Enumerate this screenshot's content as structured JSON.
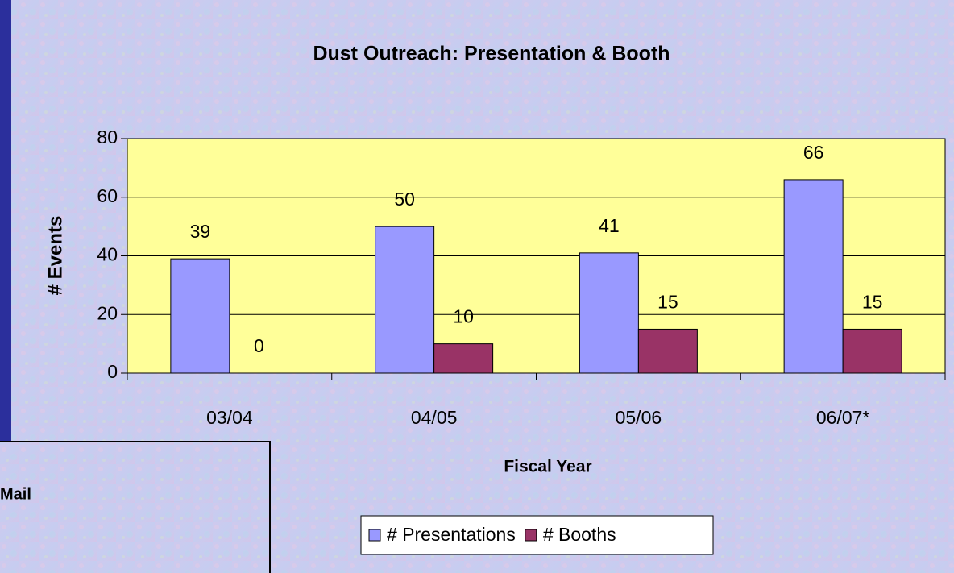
{
  "chart_data": {
    "type": "bar",
    "title": "Dust Outreach: Presentation & Booth",
    "x_label": "Fiscal Year",
    "y_label": "# Events",
    "categories": [
      "03/04",
      "04/05",
      "05/06",
      "06/07*"
    ],
    "series": [
      {
        "name": "# Presentations",
        "color": "#9999ff",
        "values": [
          39,
          50,
          41,
          66
        ]
      },
      {
        "name": "# Booths",
        "color": "#993366",
        "values": [
          0,
          10,
          15,
          15
        ]
      }
    ],
    "ylim": [
      0,
      80
    ],
    "yticks": [
      0,
      20,
      40,
      60,
      80
    ],
    "grid": true,
    "legend": "bottom"
  },
  "side_box": {
    "label": "Mail"
  }
}
